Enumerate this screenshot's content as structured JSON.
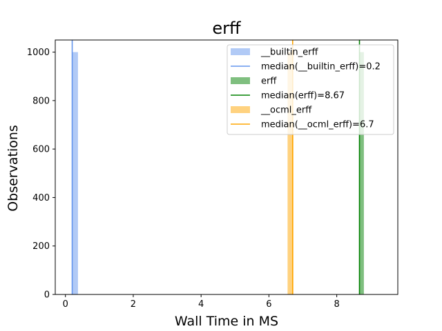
{
  "chart_data": {
    "type": "bar",
    "title": "erff",
    "xlabel": "Wall Time in MS",
    "ylabel": "Observations",
    "xlim": [
      -0.3,
      9.8
    ],
    "ylim": [
      0,
      1050
    ],
    "xticks": [
      0,
      2,
      4,
      6,
      8
    ],
    "yticks": [
      0,
      200,
      400,
      600,
      800,
      1000
    ],
    "grid": false,
    "legend_position": "top-right",
    "series": [
      {
        "name": "__builtin_erff",
        "kind": "histogram",
        "bins": [
          {
            "x0": 0.2,
            "x1": 0.37,
            "count": 1000
          }
        ],
        "color": "#6495ED",
        "opacity": 0.5
      },
      {
        "name": "median(__builtin_erff)=0.2",
        "kind": "vline",
        "x": 0.2,
        "color": "#6495ED"
      },
      {
        "name": "erff",
        "kind": "histogram",
        "bins": [
          {
            "x0": 8.67,
            "x1": 8.8,
            "count": 1000
          }
        ],
        "color": "#008000",
        "opacity": 0.5
      },
      {
        "name": "median(erff)=8.67",
        "kind": "vline",
        "x": 8.67,
        "color": "#008000"
      },
      {
        "name": "__ocml_erff",
        "kind": "histogram",
        "bins": [
          {
            "x0": 6.55,
            "x1": 6.72,
            "count": 1000
          }
        ],
        "color": "#FFA500",
        "opacity": 0.5
      },
      {
        "name": "median(__ocml_erff)=6.7",
        "kind": "vline",
        "x": 6.7,
        "color": "#FFA500"
      }
    ],
    "legend": [
      {
        "label": "__builtin_erff",
        "kind": "patch",
        "color": "#6495ED",
        "opacity": 0.5
      },
      {
        "label": "median(__builtin_erff)=0.2",
        "kind": "line",
        "color": "#6495ED"
      },
      {
        "label": "erff",
        "kind": "patch",
        "color": "#008000",
        "opacity": 0.5
      },
      {
        "label": "median(erff)=8.67",
        "kind": "line",
        "color": "#008000"
      },
      {
        "label": "__ocml_erff",
        "kind": "patch",
        "color": "#FFA500",
        "opacity": 0.5
      },
      {
        "label": "median(__ocml_erff)=6.7",
        "kind": "line",
        "color": "#FFA500"
      }
    ]
  }
}
